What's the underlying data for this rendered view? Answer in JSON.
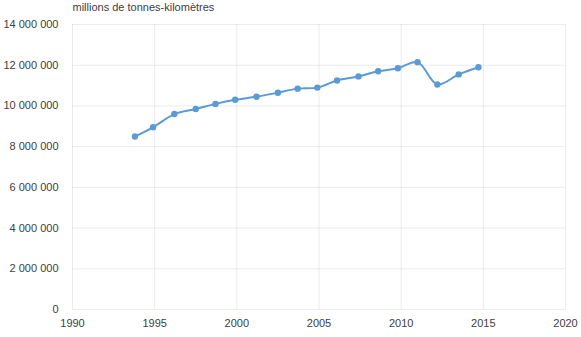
{
  "chart_data": {
    "type": "line",
    "y_label": "millions de tonnes-kilomètres",
    "x": [
      1993.8,
      1994.9,
      1996.2,
      1997.5,
      1998.7,
      1999.9,
      2001.2,
      2002.5,
      2003.7,
      2004.9,
      2006.1,
      2007.4,
      2008.6,
      2009.8,
      2011.0,
      2012.2,
      2013.5,
      2014.7
    ],
    "series": [
      {
        "color": "#5b9bd5",
        "marker": "circle",
        "line_style": "solid",
        "values": [
          8500000,
          8950000,
          9600000,
          9850000,
          10100000,
          10300000,
          10450000,
          10650000,
          10850000,
          10900000,
          11250000,
          11450000,
          11700000,
          11850000,
          12150000,
          11050000,
          11550000,
          11900000
        ]
      }
    ],
    "xlim": [
      1990,
      2020
    ],
    "xticks": [
      1990,
      1995,
      2000,
      2005,
      2010,
      2015,
      2020
    ],
    "ylim": [
      0,
      14000000
    ],
    "yticks": [
      0,
      {
        "value": 2000000,
        "label": "2 000 000"
      },
      {
        "value": 4000000,
        "label": "4 000 000"
      },
      {
        "value": 6000000,
        "label": "6 000 000"
      },
      {
        "value": 8000000,
        "label": "8 000 000"
      },
      {
        "value": 10000000,
        "label": "10 000 000"
      },
      {
        "value": 12000000,
        "label": "12 000 000"
      },
      {
        "value": 14000000,
        "label": "14 000 000"
      }
    ],
    "grid": true
  }
}
